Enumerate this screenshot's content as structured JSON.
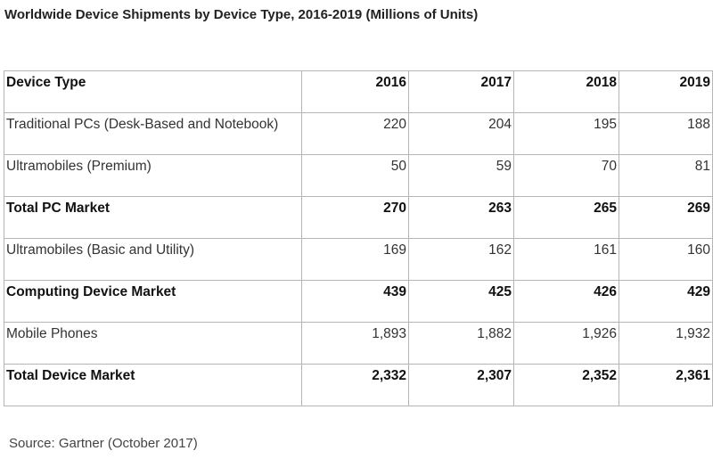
{
  "title": "Worldwide Device Shipments by Device Type, 2016-2019 (Millions of Units)",
  "table": {
    "headers": [
      "Device Type",
      "2016",
      "2017",
      "2018",
      "2019"
    ],
    "rows": [
      {
        "label": "Traditional PCs (Desk-Based and Notebook)",
        "values": [
          "220",
          "204",
          "195",
          "188"
        ],
        "bold": false
      },
      {
        "label": "Ultramobiles (Premium)",
        "values": [
          "50",
          "59",
          "70",
          "81"
        ],
        "bold": false
      },
      {
        "label": "Total PC Market",
        "values": [
          "270",
          "263",
          "265",
          "269"
        ],
        "bold": true
      },
      {
        "label": "Ultramobiles (Basic and Utility)",
        "values": [
          "169",
          "162",
          "161",
          "160"
        ],
        "bold": false
      },
      {
        "label": "Computing Device Market",
        "values": [
          "439",
          "425",
          "426",
          "429"
        ],
        "bold": true
      },
      {
        "label": "Mobile Phones",
        "values": [
          "1,893",
          "1,882",
          "1,926",
          "1,932"
        ],
        "bold": false
      },
      {
        "label": "Total Device Market",
        "values": [
          "2,332",
          "2,307",
          "2,352",
          "2,361"
        ],
        "bold": true
      }
    ]
  },
  "source": "Source: Gartner (October 2017)",
  "colors": {
    "border": "#b5b5b5",
    "text": "#333333"
  }
}
